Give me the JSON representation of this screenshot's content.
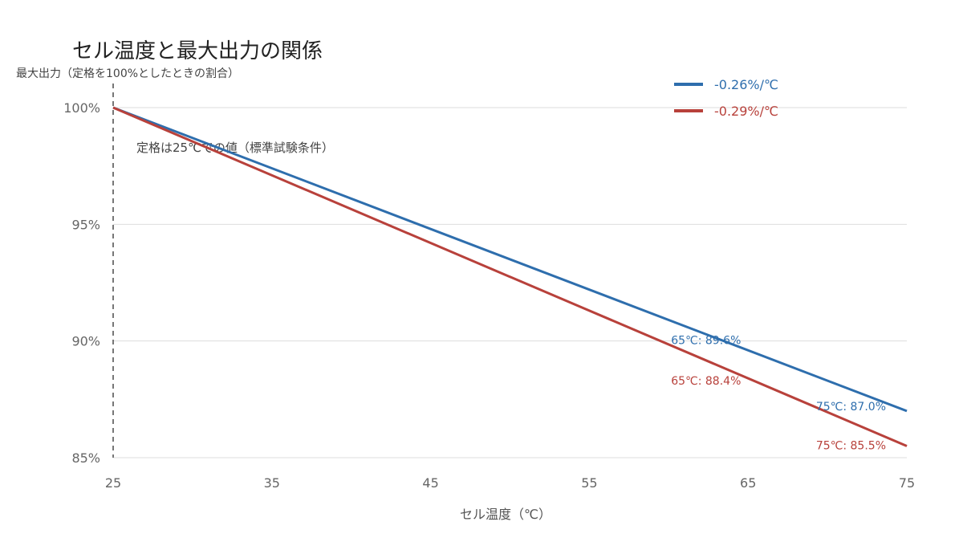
{
  "chart_data": {
    "type": "line",
    "title": "セル温度と最大出力の関係",
    "ylabel": "最大出力（定格を100%としたときの割合）",
    "xlabel": "セル温度（℃）",
    "xlim": [
      25,
      75
    ],
    "ylim": [
      85,
      100
    ],
    "x_ticks": [
      "25",
      "35",
      "45",
      "55",
      "65",
      "75"
    ],
    "y_ticks": [
      "85%",
      "90%",
      "95%",
      "100%"
    ],
    "grid": "horizontal",
    "legend_position": "top-right",
    "reference_line": {
      "x": 25,
      "label": "定格は25℃での値（標準試験条件）"
    },
    "series": [
      {
        "name": "-0.26%/℃",
        "color": "#2e6ead",
        "x": [
          25,
          75
        ],
        "values": [
          100,
          87.0
        ]
      },
      {
        "name": "-0.29%/℃",
        "color": "#b8413b",
        "x": [
          25,
          75
        ],
        "values": [
          100,
          85.5
        ]
      }
    ],
    "annotations": [
      {
        "text": "65℃: 89.6%",
        "series": 0,
        "x": 65,
        "y": 89.6
      },
      {
        "text": "65℃: 88.4%",
        "series": 1,
        "x": 65,
        "y": 88.4
      },
      {
        "text": "75℃: 87.0%",
        "series": 0,
        "x": 75,
        "y": 87.0
      },
      {
        "text": "75℃: 85.5%",
        "series": 1,
        "x": 75,
        "y": 85.5
      }
    ]
  }
}
